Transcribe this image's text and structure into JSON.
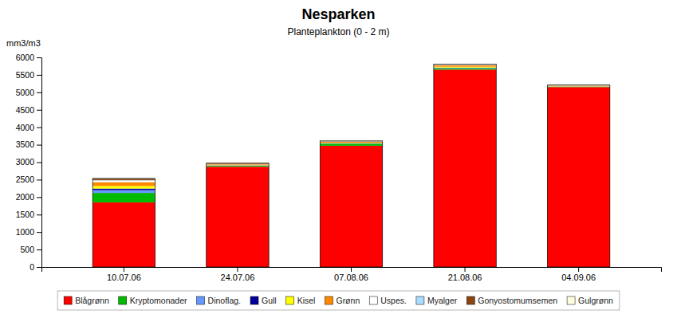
{
  "chart_data": {
    "type": "bar",
    "stacked": true,
    "grid": false,
    "legend": "bottom",
    "title": "Nesparken",
    "subtitle": "Planteplankton (0 - 2 m)",
    "ylabel": "mm3/m3",
    "categories": [
      "10.07.06",
      "24.07.06",
      "07.08.06",
      "21.08.06",
      "04.09.06"
    ],
    "ylim": [
      0,
      6000
    ],
    "yticks": [
      0,
      500,
      1000,
      1500,
      2000,
      2500,
      3000,
      3500,
      4000,
      4500,
      5000,
      5500,
      6000
    ],
    "series": [
      {
        "name": "Blågrønn",
        "color": "#FF0000",
        "values": [
          1850,
          2870,
          3470,
          5650,
          5150
        ]
      },
      {
        "name": "Kryptomonader",
        "color": "#00BB00",
        "values": [
          270,
          25,
          60,
          35,
          10
        ]
      },
      {
        "name": "Dinoflag.",
        "color": "#6699FF",
        "values": [
          80,
          10,
          10,
          15,
          5
        ]
      },
      {
        "name": "Gull",
        "color": "#000099",
        "values": [
          45,
          5,
          8,
          8,
          4
        ]
      },
      {
        "name": "Kisel",
        "color": "#FFFF00",
        "values": [
          75,
          8,
          12,
          25,
          8
        ]
      },
      {
        "name": "Grønn",
        "color": "#FF8800",
        "values": [
          110,
          20,
          25,
          40,
          12
        ]
      },
      {
        "name": "Uspes.",
        "color": "#FFFFFF",
        "values": [
          45,
          8,
          8,
          8,
          4
        ]
      },
      {
        "name": "Myalger",
        "color": "#AADDFF",
        "values": [
          8,
          4,
          4,
          12,
          4
        ]
      },
      {
        "name": "Gonyostomumsemen",
        "color": "#8B4513",
        "values": [
          45,
          18,
          8,
          8,
          8
        ]
      },
      {
        "name": "Gulgrønn",
        "color": "#FFFFDD",
        "values": [
          8,
          4,
          4,
          4,
          4
        ]
      }
    ]
  }
}
